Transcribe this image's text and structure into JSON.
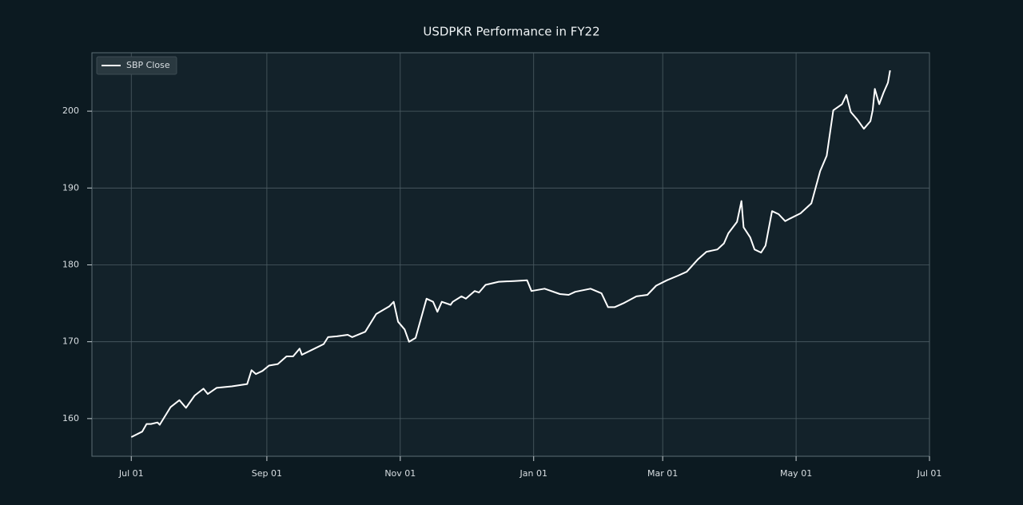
{
  "chart_data": {
    "type": "line",
    "title": "USDPKR Performance in FY22",
    "x": [
      "Jul 01",
      "Jul 06",
      "Jul 08",
      "Jul 10",
      "Jul 13",
      "Jul 14",
      "Jul 19",
      "Jul 23",
      "Jul 26",
      "Jul 30",
      "Aug 03",
      "Aug 05",
      "Aug 09",
      "Aug 16",
      "Aug 23",
      "Aug 25",
      "Aug 27",
      "Aug 30",
      "Sep 02",
      "Sep 06",
      "Sep 08",
      "Sep 10",
      "Sep 13",
      "Sep 16",
      "Sep 17",
      "Sep 22",
      "Sep 27",
      "Sep 29",
      "Oct 03",
      "Oct 08",
      "Oct 10",
      "Oct 16",
      "Oct 21",
      "Oct 27",
      "Oct 29",
      "Oct 31",
      "Nov 03",
      "Nov 05",
      "Nov 08",
      "Nov 13",
      "Nov 16",
      "Nov 18",
      "Nov 20",
      "Nov 24",
      "Nov 25",
      "Nov 29",
      "Dec 01",
      "Dec 05",
      "Dec 07",
      "Dec 10",
      "Dec 16",
      "Dec 23",
      "Dec 29",
      "Dec 31",
      "Jan 06",
      "Jan 13",
      "Jan 17",
      "Jan 20",
      "Jan 27",
      "Feb 01",
      "Feb 04",
      "Feb 07",
      "Feb 11",
      "Feb 17",
      "Feb 22",
      "Feb 26",
      "Mar 03",
      "Mar 08",
      "Mar 12",
      "Mar 17",
      "Mar 21",
      "Mar 26",
      "Mar 29",
      "Mar 31",
      "Apr 04",
      "Apr 06",
      "Apr 07",
      "Apr 10",
      "Apr 12",
      "Apr 15",
      "Apr 17",
      "Apr 20",
      "Apr 23",
      "Apr 26",
      "Apr 28",
      "May 03",
      "May 08",
      "May 12",
      "May 15",
      "May 18",
      "May 22",
      "May 24",
      "May 26",
      "May 29",
      "Jun 01",
      "Jun 04",
      "Jun 05",
      "Jun 06",
      "Jun 08",
      "Jun 10",
      "Jun 12",
      "Jun 13"
    ],
    "series": [
      {
        "name": "SBP Close",
        "color": "#ffffff",
        "values": [
          157.6,
          158.3,
          159.3,
          159.3,
          159.5,
          159.2,
          161.5,
          162.4,
          161.4,
          163.0,
          163.9,
          163.2,
          164.0,
          164.2,
          164.5,
          166.3,
          165.8,
          166.2,
          166.9,
          167.1,
          167.6,
          168.1,
          168.1,
          169.1,
          168.3,
          169.0,
          169.7,
          170.6,
          170.7,
          170.9,
          170.6,
          171.3,
          173.6,
          174.6,
          175.2,
          172.6,
          171.6,
          170.0,
          170.5,
          175.6,
          175.2,
          173.9,
          175.2,
          174.8,
          175.2,
          175.9,
          175.6,
          176.6,
          176.4,
          177.4,
          177.8,
          177.9,
          178.0,
          176.6,
          176.9,
          176.2,
          176.1,
          176.5,
          176.9,
          176.3,
          174.5,
          174.5,
          175.0,
          175.9,
          176.1,
          177.3,
          178.0,
          178.6,
          179.1,
          180.7,
          181.7,
          182.0,
          182.8,
          184.1,
          185.6,
          188.3,
          184.9,
          183.6,
          182.0,
          181.6,
          182.5,
          187.0,
          186.6,
          185.7,
          186.0,
          186.7,
          188.0,
          192.2,
          194.2,
          200.1,
          200.9,
          202.1,
          199.9,
          198.9,
          197.7,
          198.7,
          200.1,
          202.9,
          200.9,
          202.4,
          203.7,
          205.3
        ]
      }
    ],
    "xlim": [
      "Jun 13",
      "Jul 01"
    ],
    "xticks": [
      "Jul 01",
      "Sep 01",
      "Nov 01",
      "Jan 01",
      "Mar 01",
      "May 01",
      "Jul 01"
    ],
    "ylim": [
      155.1,
      207.6
    ],
    "yticks": [
      160,
      170,
      180,
      190,
      200
    ],
    "grid": true,
    "legend": "upper left"
  }
}
